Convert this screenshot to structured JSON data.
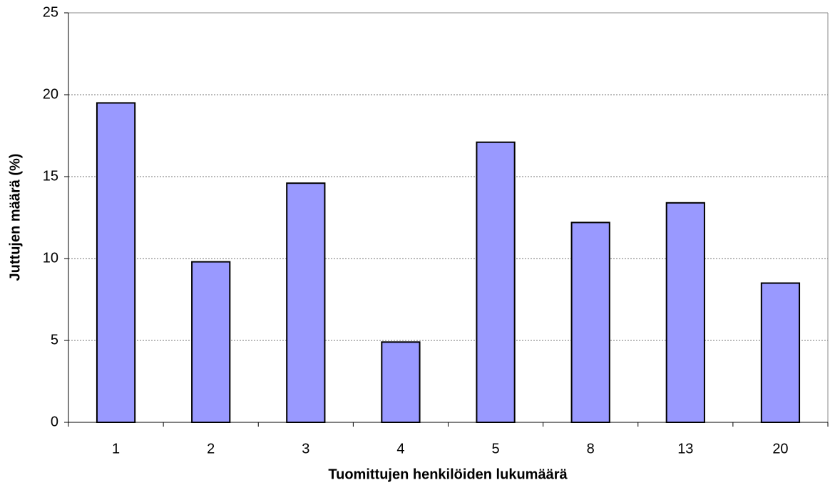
{
  "chart_data": {
    "type": "bar",
    "x_label": "Tuomittujen henkilöiden lukumäärä",
    "y_label": "Juttujen määrä (%)",
    "categories": [
      "1",
      "2",
      "3",
      "4",
      "5",
      "8",
      "13",
      "20"
    ],
    "values": [
      19.5,
      9.8,
      14.6,
      4.9,
      17.1,
      12.2,
      13.4,
      8.5
    ],
    "color": "#9999ff",
    "ylim": [
      0,
      25
    ],
    "yticks": [
      0,
      5,
      10,
      15,
      20,
      25
    ],
    "grid": true
  }
}
